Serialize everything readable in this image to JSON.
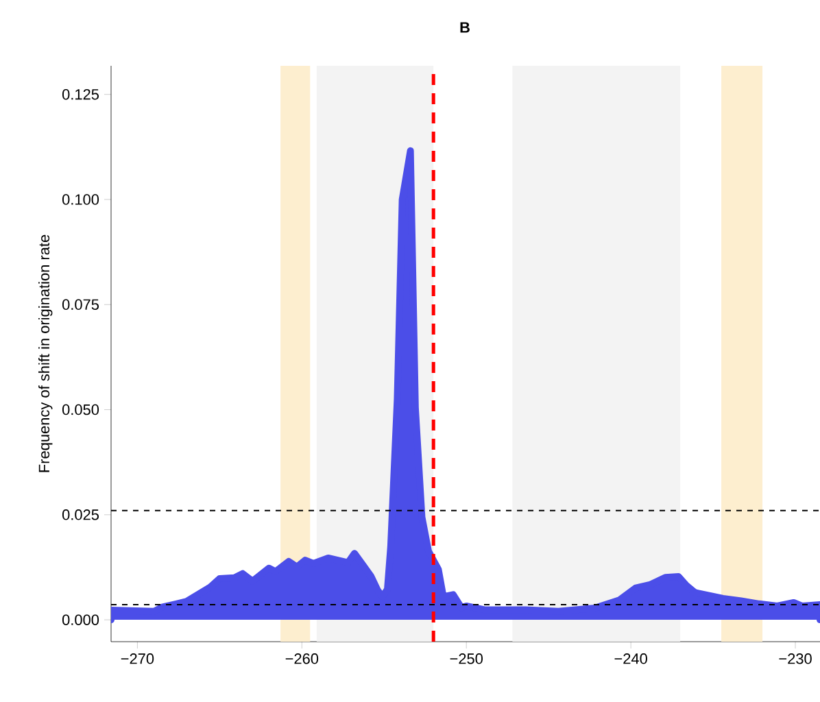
{
  "chart_data": {
    "type": "area",
    "title": "B",
    "ylabel": "Frequency of shift in origination rate",
    "xlim": [
      -271.6,
      -228.5
    ],
    "ylim": [
      -0.0052,
      0.1318
    ],
    "xticks": [
      {
        "value": -270,
        "label": "−270"
      },
      {
        "value": -260,
        "label": "−260"
      },
      {
        "value": -250,
        "label": "−250"
      },
      {
        "value": -240,
        "label": "−240"
      },
      {
        "value": -230,
        "label": "−230"
      }
    ],
    "yticks": [
      {
        "value": 0,
        "label": "0.000"
      },
      0.025,
      {
        "value": 0.05,
        "label": "0.050"
      },
      0.075,
      {
        "value": 0.1,
        "label": "0.100"
      },
      0.125
    ],
    "x": [
      -271.6,
      -269,
      -268.5,
      -267,
      -265.6,
      -265,
      -264.1,
      -263.6,
      -263,
      -262,
      -261.6,
      -260.8,
      -260.3,
      -259.8,
      -259.3,
      -258.4,
      -257.2,
      -256.8,
      -256.3,
      -255.8,
      -255.4,
      -255.1,
      -254.8,
      -254.6,
      -254.2,
      -253.9,
      -253.4,
      -253.1,
      -252.7,
      -252.3,
      -251.7,
      -251.4,
      -250.8,
      -250.3,
      -250,
      -248.9,
      -246.4,
      -244.4,
      -242.2,
      -240.7,
      -239.7,
      -238.8,
      -237.9,
      -237.1,
      -236.6,
      -236.1,
      -234.4,
      -233.3,
      -232.2,
      -231.1,
      -230.1,
      -229.6,
      -228.5
    ],
    "series": [
      {
        "color": "#4b4ee8",
        "values": [
          0.0023,
          0.002,
          0.003,
          0.0044,
          0.0077,
          0.0098,
          0.01,
          0.011,
          0.0092,
          0.0123,
          0.0115,
          0.0139,
          0.0126,
          0.0142,
          0.0134,
          0.0147,
          0.0136,
          0.0158,
          0.0131,
          0.0104,
          0.0071,
          0.0055,
          0.0073,
          0.0174,
          0.0526,
          0.1,
          0.1116,
          0.0505,
          0.0244,
          0.0163,
          0.012,
          0.0055,
          0.006,
          0.0029,
          0.0033,
          0.0024,
          0.0024,
          0.002,
          0.0028,
          0.0047,
          0.0076,
          0.0084,
          0.0101,
          0.0103,
          0.0081,
          0.0065,
          0.0051,
          0.0045,
          0.0038,
          0.0033,
          0.0041,
          0.0033,
          0.0036
        ]
      }
    ],
    "bands": [
      {
        "axis": "x",
        "from": -261.3,
        "to": -259.5,
        "color": "#fdeecf"
      },
      {
        "axis": "x",
        "from": -259.1,
        "to": -252.0,
        "color": "#f3f3f3"
      },
      {
        "axis": "x",
        "from": -247.2,
        "to": -237.0,
        "color": "#f3f3f3"
      },
      {
        "axis": "x",
        "from": -234.5,
        "to": -232.0,
        "color": "#fdeecf"
      }
    ],
    "ref_lines": [
      {
        "axis": "y",
        "value": 0.026,
        "color": "#000000",
        "line_style": "dashed"
      },
      {
        "axis": "y",
        "value": 0.0036,
        "color": "#000000",
        "line_style": "dashed"
      },
      {
        "axis": "x",
        "value": -252,
        "color": "#ff0000",
        "line_style": "dashed"
      }
    ],
    "grid": false
  }
}
